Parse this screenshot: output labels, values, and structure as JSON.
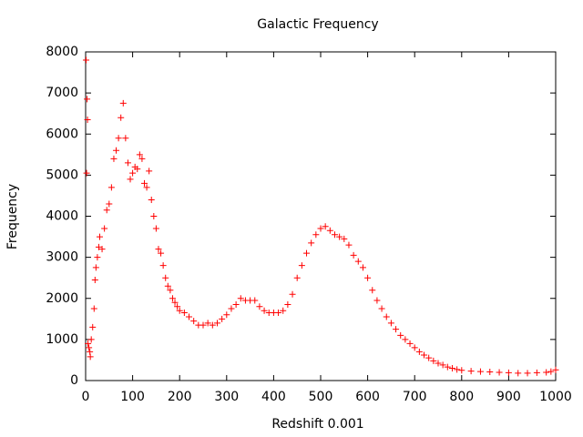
{
  "chart_data": {
    "type": "scatter",
    "title": "Galactic Frequency",
    "x_label": "Redshift 0.001",
    "y_label": "Frequency",
    "series": [
      {
        "name": null,
        "color": "#ff0000",
        "x": [
          1,
          2,
          3,
          4,
          5,
          7,
          9,
          10,
          12,
          15,
          18,
          20,
          22,
          25,
          28,
          30,
          35,
          40,
          45,
          50,
          55,
          60,
          65,
          70,
          75,
          80,
          85,
          90,
          95,
          100,
          105,
          110,
          115,
          120,
          125,
          130,
          135,
          140,
          145,
          150,
          155,
          160,
          165,
          170,
          175,
          180,
          185,
          190,
          195,
          200,
          210,
          220,
          230,
          240,
          250,
          260,
          270,
          280,
          290,
          300,
          310,
          320,
          330,
          340,
          350,
          360,
          370,
          380,
          390,
          400,
          410,
          420,
          430,
          440,
          450,
          460,
          470,
          480,
          490,
          500,
          510,
          520,
          530,
          540,
          550,
          560,
          570,
          580,
          590,
          600,
          610,
          620,
          630,
          640,
          650,
          660,
          670,
          680,
          690,
          700,
          710,
          720,
          730,
          740,
          750,
          760,
          770,
          780,
          790,
          800,
          820,
          840,
          860,
          880,
          900,
          920,
          940,
          960,
          980,
          990,
          1000
        ],
        "values": [
          7800,
          5050,
          6850,
          6350,
          900,
          800,
          700,
          580,
          1000,
          1300,
          1750,
          2450,
          2750,
          3000,
          3250,
          3500,
          3200,
          3700,
          4150,
          4300,
          4700,
          5400,
          5600,
          5900,
          6400,
          6750,
          5900,
          5300,
          4900,
          5050,
          5200,
          5150,
          5500,
          5400,
          4800,
          4700,
          5100,
          4400,
          4000,
          3700,
          3200,
          3100,
          2800,
          2500,
          2300,
          2200,
          2000,
          1900,
          1800,
          1700,
          1650,
          1550,
          1450,
          1350,
          1350,
          1400,
          1350,
          1400,
          1500,
          1600,
          1750,
          1850,
          2000,
          1950,
          1950,
          1950,
          1800,
          1700,
          1650,
          1650,
          1650,
          1700,
          1850,
          2100,
          2500,
          2800,
          3100,
          3350,
          3550,
          3700,
          3750,
          3650,
          3550,
          3500,
          3450,
          3300,
          3050,
          2900,
          2750,
          2500,
          2200,
          1950,
          1750,
          1550,
          1400,
          1250,
          1100,
          1000,
          900,
          800,
          700,
          620,
          550,
          480,
          420,
          380,
          330,
          300,
          270,
          250,
          230,
          220,
          210,
          200,
          190,
          180,
          180,
          190,
          200,
          220,
          260
        ]
      }
    ],
    "xlim": [
      0,
      1000
    ],
    "xticks": [
      0,
      100,
      200,
      300,
      400,
      500,
      600,
      700,
      800,
      900,
      1000
    ],
    "ylim": [
      0,
      8000
    ],
    "yticks": [
      0,
      1000,
      2000,
      3000,
      4000,
      5000,
      6000,
      7000,
      8000
    ]
  }
}
